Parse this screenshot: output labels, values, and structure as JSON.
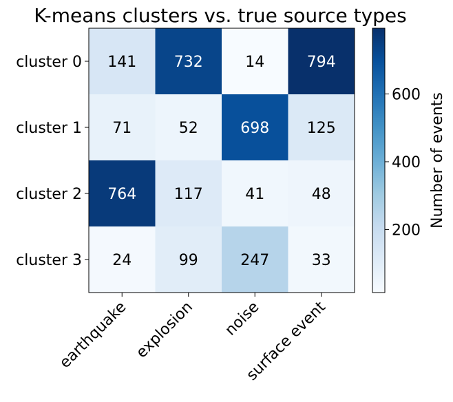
{
  "chart_data": {
    "type": "heatmap",
    "title": "K-means clusters vs. true source types",
    "rows": [
      "cluster 0",
      "cluster 1",
      "cluster 2",
      "cluster 3"
    ],
    "columns": [
      "earthquake",
      "explosion",
      "noise",
      "surface event"
    ],
    "values": [
      [
        141,
        732,
        14,
        794
      ],
      [
        71,
        52,
        698,
        125
      ],
      [
        764,
        117,
        41,
        48
      ],
      [
        24,
        99,
        247,
        33
      ]
    ],
    "colormap": "Blues",
    "colorbar": {
      "label": "Number of events",
      "ticks": [
        200,
        400,
        600
      ],
      "range": [
        14,
        794
      ]
    },
    "colors": {
      "low": "#f7fbff",
      "high": "#08306b",
      "text_on_dark": "#ffffff",
      "text_on_light": "#000000"
    }
  }
}
